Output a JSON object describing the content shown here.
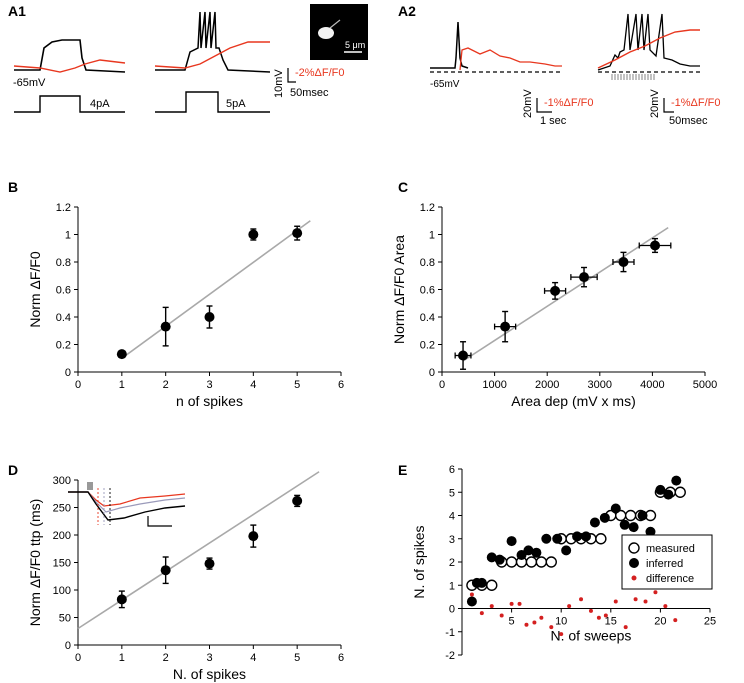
{
  "figure": {
    "panel_letters": [
      "A1",
      "A2",
      "B",
      "C",
      "D",
      "E"
    ],
    "a1": {
      "resting_label": "-65mV",
      "step_labels": [
        "4pA",
        "5pA"
      ],
      "scale_v": "10mV",
      "scale_df": "-2%ΔF/F0",
      "scale_t": "50msec",
      "inset_scale": "5 μm"
    },
    "a2": {
      "resting_label": "-65mV",
      "scale1_v": "20mV",
      "scale1_df": "-1%ΔF/F0",
      "scale1_t": "1 sec",
      "scale2_v": "20mV",
      "scale2_df": "-1%ΔF/F0",
      "scale2_t": "50msec"
    },
    "colors": {
      "fit": "#a9a9a9",
      "red": "#e8371f",
      "point": "#000000",
      "diff": "#d42020"
    }
  },
  "chart_data": [
    {
      "panel": "B",
      "type": "scatter",
      "xlabel": "n of spikes",
      "ylabel": "Norm ΔF/F0",
      "xlim": [
        0,
        6
      ],
      "ylim": [
        0,
        1.2
      ],
      "xticks": [
        "0",
        "1",
        "2",
        "3",
        "4",
        "5",
        "6"
      ],
      "yticks": [
        "0",
        "0.2",
        "0.4",
        "0.6",
        "0.8",
        "1",
        "1.2"
      ],
      "points": [
        {
          "x": 1,
          "y": 0.13,
          "yerr": 0.02
        },
        {
          "x": 2,
          "y": 0.33,
          "yerr": 0.14
        },
        {
          "x": 3,
          "y": 0.4,
          "yerr": 0.08
        },
        {
          "x": 4,
          "y": 1.0,
          "yerr": 0.04
        },
        {
          "x": 5,
          "y": 1.01,
          "yerr": 0.05
        }
      ],
      "fit": [
        [
          1,
          0.1
        ],
        [
          5.3,
          1.1
        ]
      ]
    },
    {
      "panel": "C",
      "type": "scatter",
      "xlabel": "Area dep (mV x ms)",
      "ylabel": "Norm ΔF/F0 Area",
      "xlim": [
        0,
        5000
      ],
      "ylim": [
        0,
        1.2
      ],
      "xticks": [
        "0",
        "1000",
        "2000",
        "3000",
        "4000",
        "5000"
      ],
      "yticks": [
        "0",
        "0.2",
        "0.4",
        "0.6",
        "0.8",
        "1",
        "1.2"
      ],
      "points": [
        {
          "x": 400,
          "y": 0.12,
          "xerr": 150,
          "yerr": 0.1
        },
        {
          "x": 1200,
          "y": 0.33,
          "xerr": 200,
          "yerr": 0.11
        },
        {
          "x": 2150,
          "y": 0.59,
          "xerr": 200,
          "yerr": 0.06
        },
        {
          "x": 2700,
          "y": 0.69,
          "xerr": 250,
          "yerr": 0.07
        },
        {
          "x": 3450,
          "y": 0.8,
          "xerr": 200,
          "yerr": 0.07
        },
        {
          "x": 4050,
          "y": 0.92,
          "xerr": 300,
          "yerr": 0.05
        }
      ],
      "fit": [
        [
          400,
          0.08
        ],
        [
          4300,
          1.05
        ]
      ]
    },
    {
      "panel": "D",
      "type": "scatter",
      "xlabel": "N. of spikes",
      "ylabel": "Norm ΔF/F0 ttp (ms)",
      "xlim": [
        0,
        6
      ],
      "ylim": [
        0,
        300
      ],
      "xticks": [
        "0",
        "1",
        "2",
        "3",
        "4",
        "5",
        "6"
      ],
      "yticks": [
        "0",
        "50",
        "100",
        "150",
        "200",
        "250",
        "300"
      ],
      "points": [
        {
          "x": 1,
          "y": 83,
          "yerr": 15
        },
        {
          "x": 2,
          "y": 136,
          "yerr": 24
        },
        {
          "x": 3,
          "y": 148,
          "yerr": 10
        },
        {
          "x": 4,
          "y": 198,
          "yerr": 20
        },
        {
          "x": 5,
          "y": 262,
          "yerr": 10
        }
      ],
      "fit": [
        [
          0,
          30
        ],
        [
          5.5,
          315
        ]
      ]
    },
    {
      "panel": "E",
      "type": "scatter",
      "xlabel": "N. of sweeps",
      "ylabel": "N. of spikes",
      "xlim": [
        0,
        25
      ],
      "ylim": [
        -2,
        6
      ],
      "xticks": [
        "5",
        "10",
        "15",
        "20",
        "25"
      ],
      "yticks": [
        "-2",
        "-1",
        "0",
        "1",
        "2",
        "3",
        "4",
        "5",
        "6"
      ],
      "legend": [
        "measured",
        "inferred",
        "difference"
      ],
      "series": [
        {
          "name": "measured",
          "x": [
            1,
            2,
            3,
            4,
            5,
            6,
            7,
            8,
            9,
            10,
            11,
            12,
            13,
            14,
            15,
            16,
            17,
            18,
            19,
            20,
            21,
            22
          ],
          "y": [
            1,
            1,
            1,
            2,
            2,
            2,
            2,
            2,
            2,
            3,
            3,
            3,
            3,
            3,
            4,
            4,
            4,
            4,
            4,
            5,
            5,
            5
          ]
        },
        {
          "name": "inferred",
          "x": [
            1,
            1.5,
            2,
            3,
            3.8,
            5,
            6,
            6.7,
            7.5,
            8.5,
            9.6,
            10.5,
            11.6,
            12.5,
            13.4,
            14.4,
            15.5,
            16.4,
            17.3,
            18.2,
            19,
            20,
            20.8,
            21.6
          ],
          "y": [
            0.3,
            1.1,
            1.1,
            2.2,
            2.1,
            2.9,
            2.3,
            2.5,
            2.4,
            3.0,
            3.0,
            2.5,
            3.1,
            3.1,
            3.7,
            3.9,
            4.3,
            3.6,
            3.5,
            4.0,
            3.3,
            5.1,
            4.9,
            5.5
          ]
        },
        {
          "name": "difference",
          "x": [
            1,
            2,
            3,
            4,
            5,
            5.8,
            6.5,
            7.3,
            8,
            9,
            10,
            10.8,
            12,
            13,
            13.8,
            14.5,
            15.5,
            16.5,
            17.5,
            18.5,
            19.5,
            20.5,
            21.5
          ],
          "y": [
            0.6,
            -0.2,
            0.1,
            -0.3,
            0.2,
            0.2,
            -0.7,
            -0.6,
            -0.4,
            -0.8,
            -1.1,
            0.1,
            0.4,
            -0.1,
            -0.4,
            -0.3,
            0.3,
            -0.8,
            0.4,
            0.3,
            0.7,
            0.1,
            -0.5
          ]
        }
      ]
    }
  ]
}
